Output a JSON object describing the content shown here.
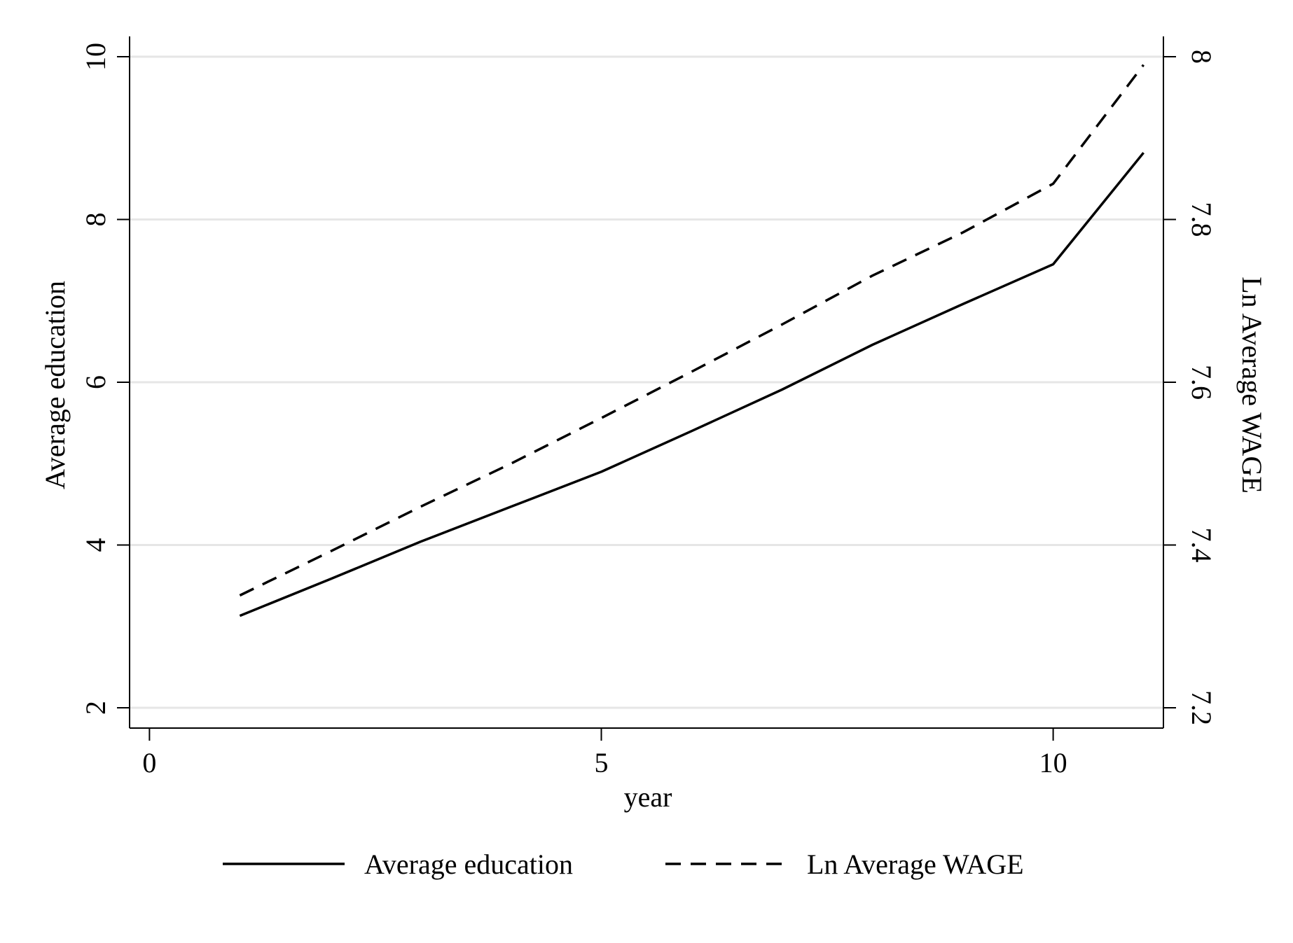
{
  "chart_data": {
    "type": "line",
    "title": "",
    "xlabel": "year",
    "ylabel_left": "Average education",
    "ylabel_right": "Ln Average WAGE",
    "xlim": [
      -0.22,
      11.22
    ],
    "ylim_left": [
      1.75,
      10.25
    ],
    "ylim_right": [
      7.175,
      8.025
    ],
    "xticks": [
      0,
      5,
      10
    ],
    "yticks_left": [
      2,
      4,
      6,
      8,
      10
    ],
    "yticks_right": [
      7.2,
      7.4,
      7.6,
      7.8,
      8.0
    ],
    "xtick_labels": [
      "0",
      "5",
      "10"
    ],
    "ytick_labels_left": [
      "2",
      "4",
      "6",
      "8",
      "10"
    ],
    "ytick_labels_right": [
      "7.2",
      "7.4",
      "7.6",
      "7.8",
      "8"
    ],
    "grid": true,
    "legend": "bottom",
    "x": [
      1,
      2,
      3,
      4,
      5,
      6,
      7,
      8,
      9,
      10,
      11
    ],
    "series": [
      {
        "name": "Average education",
        "axis": "left",
        "style": "solid",
        "color": "#000000",
        "values": [
          3.13,
          3.58,
          4.04,
          4.47,
          4.9,
          5.4,
          5.91,
          6.46,
          6.96,
          7.45,
          8.82
        ]
      },
      {
        "name": "Ln Average WAGE",
        "axis": "right",
        "style": "dashed",
        "color": "#000000",
        "values": [
          7.338,
          7.392,
          7.447,
          7.5,
          7.556,
          7.613,
          7.671,
          7.731,
          7.784,
          7.844,
          7.99
        ]
      }
    ]
  }
}
